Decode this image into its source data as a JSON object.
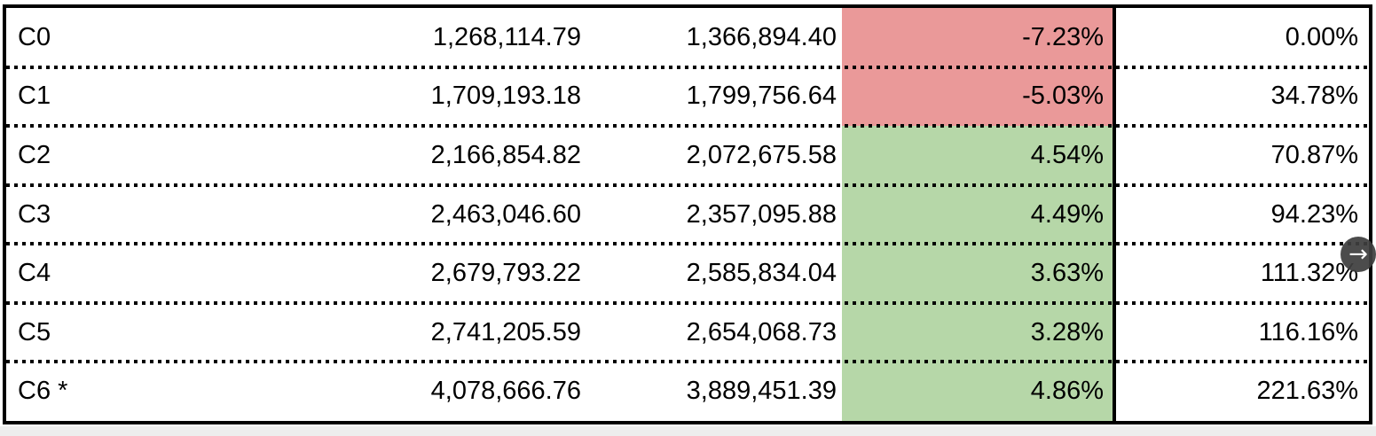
{
  "colors": {
    "negative_bg": "#ea9999",
    "positive_bg": "#b6d7a8",
    "grid_line": "#000000",
    "text": "#000000",
    "outside_strip": "#ededed",
    "scroll_button_bg": "#3e3e3e",
    "scroll_button_fg": "#ffffff"
  },
  "table": {
    "rows": [
      {
        "label": "C0",
        "value_a": "1,268,114.79",
        "value_b": "1,366,894.40",
        "change_pct": "-7.23%",
        "change_sign": "negative",
        "cumulative_pct": "0.00%"
      },
      {
        "label": "C1",
        "value_a": "1,709,193.18",
        "value_b": "1,799,756.64",
        "change_pct": "-5.03%",
        "change_sign": "negative",
        "cumulative_pct": "34.78%"
      },
      {
        "label": "C2",
        "value_a": "2,166,854.82",
        "value_b": "2,072,675.58",
        "change_pct": "4.54%",
        "change_sign": "positive",
        "cumulative_pct": "70.87%"
      },
      {
        "label": "C3",
        "value_a": "2,463,046.60",
        "value_b": "2,357,095.88",
        "change_pct": "4.49%",
        "change_sign": "positive",
        "cumulative_pct": "94.23%"
      },
      {
        "label": "C4",
        "value_a": "2,679,793.22",
        "value_b": "2,585,834.04",
        "change_pct": "3.63%",
        "change_sign": "positive",
        "cumulative_pct": "111.32%"
      },
      {
        "label": "C5",
        "value_a": "2,741,205.59",
        "value_b": "2,654,068.73",
        "change_pct": "3.28%",
        "change_sign": "positive",
        "cumulative_pct": "116.16%"
      },
      {
        "label": "C6 *",
        "value_a": "4,078,666.76",
        "value_b": "3,889,451.39",
        "change_pct": "4.86%",
        "change_sign": "positive",
        "cumulative_pct": "221.63%"
      }
    ]
  },
  "scroll_button": {
    "icon": "right-arrow",
    "glyph": "→"
  }
}
